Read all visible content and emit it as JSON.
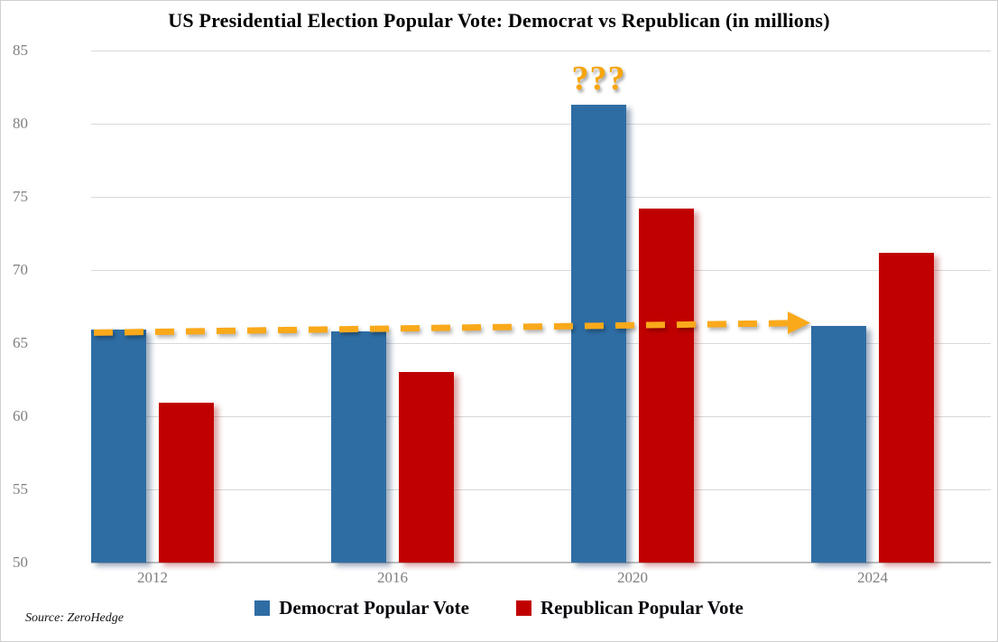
{
  "chart_data": {
    "type": "bar",
    "title": "US Presidential Election Popular Vote: Democrat vs Republican (in millions)",
    "categories": [
      "2012",
      "2016",
      "2020",
      "2024"
    ],
    "series": [
      {
        "name": "Democrat Popular Vote",
        "color": "#2E6DA4",
        "values": [
          65.9,
          65.8,
          81.3,
          66.2
        ]
      },
      {
        "name": "Republican Popular Vote",
        "color": "#C00000",
        "values": [
          60.9,
          63.0,
          74.2,
          71.2
        ]
      }
    ],
    "xlabel": "",
    "ylabel": "",
    "ylim": [
      50,
      85
    ],
    "yticks": [
      50,
      55,
      60,
      65,
      70,
      75,
      80,
      85
    ],
    "grid": "horizontal",
    "legend_position": "bottom"
  },
  "annotations": {
    "question_marks": {
      "text": "???",
      "color": "#F7A50C",
      "target_category": "2020",
      "target_series": "Democrat Popular Vote"
    },
    "trend_arrow": {
      "type": "dashed-arrow",
      "color": "#F9A91A",
      "from": {
        "category": "2012",
        "level": 65.9
      },
      "to": {
        "category": "2024",
        "level": 66.2
      }
    }
  },
  "source": "Source: ZeroHedge"
}
